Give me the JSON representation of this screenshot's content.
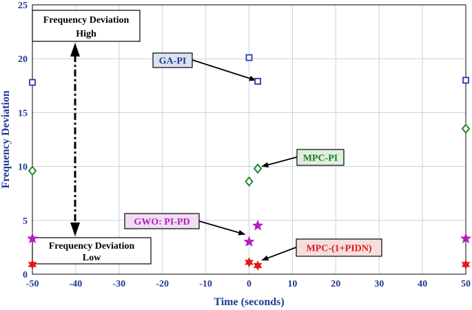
{
  "chart_data": {
    "type": "scatter",
    "xlabel": "Time (seconds)",
    "ylabel": "Frequency Deviation",
    "xlim": [
      -50,
      50
    ],
    "ylim": [
      0,
      25
    ],
    "xticks": [
      "-50",
      "-40",
      "-30",
      "-20",
      "-10",
      "0",
      "10",
      "20",
      "30",
      "40",
      "50"
    ],
    "yticks": [
      "0",
      "5",
      "10",
      "15",
      "20",
      "25"
    ],
    "grid": true,
    "series": [
      {
        "name": "GA-PI",
        "marker": "square",
        "color": "#1f3ab0",
        "points": [
          [
            -50,
            17.8
          ],
          [
            0,
            20.1
          ],
          [
            2,
            17.9
          ],
          [
            50,
            18.0
          ]
        ]
      },
      {
        "name": "MPC-PI",
        "marker": "diamond",
        "color": "#1e8a2a",
        "points": [
          [
            -50,
            9.6
          ],
          [
            0,
            8.6
          ],
          [
            2,
            9.8
          ],
          [
            50,
            13.5
          ]
        ]
      },
      {
        "name": "GWO: PI-PD",
        "marker": "star",
        "color": "#b020c0",
        "points": [
          [
            -50,
            3.3
          ],
          [
            0,
            3.0
          ],
          [
            2,
            4.5
          ],
          [
            50,
            3.3
          ]
        ]
      },
      {
        "name": "MPC-(1+PIDN)",
        "marker": "hexstar",
        "color": "#e01818",
        "points": [
          [
            -50,
            0.9
          ],
          [
            0,
            1.1
          ],
          [
            2,
            0.8
          ],
          [
            50,
            0.9
          ]
        ]
      }
    ],
    "annotations": [
      {
        "text": "GA-PI",
        "style": "blue",
        "bg": "#dce3f0",
        "fg": "#1f3a93",
        "arrow_to": [
          1.5,
          18.0
        ]
      },
      {
        "text": "MPC-PI",
        "style": "green",
        "bg": "#dff0df",
        "fg": "#1e7a25",
        "arrow_to": [
          3.0,
          10.0
        ]
      },
      {
        "text": "GWO: PI-PD",
        "style": "magenta",
        "bg": "#f1ddf1",
        "fg": "#b020c0",
        "arrow_to": [
          -1.0,
          3.7
        ]
      },
      {
        "text": "MPC-(1+PIDN)",
        "style": "red",
        "bg": "#f6dede",
        "fg": "#e01818",
        "arrow_to": [
          3.0,
          1.3
        ]
      }
    ],
    "range_boxes": {
      "high": {
        "line1": "Frequency  Deviation",
        "line2": "High"
      },
      "low": {
        "line1": "Frequency  Deviation",
        "line2": "Low"
      }
    }
  }
}
